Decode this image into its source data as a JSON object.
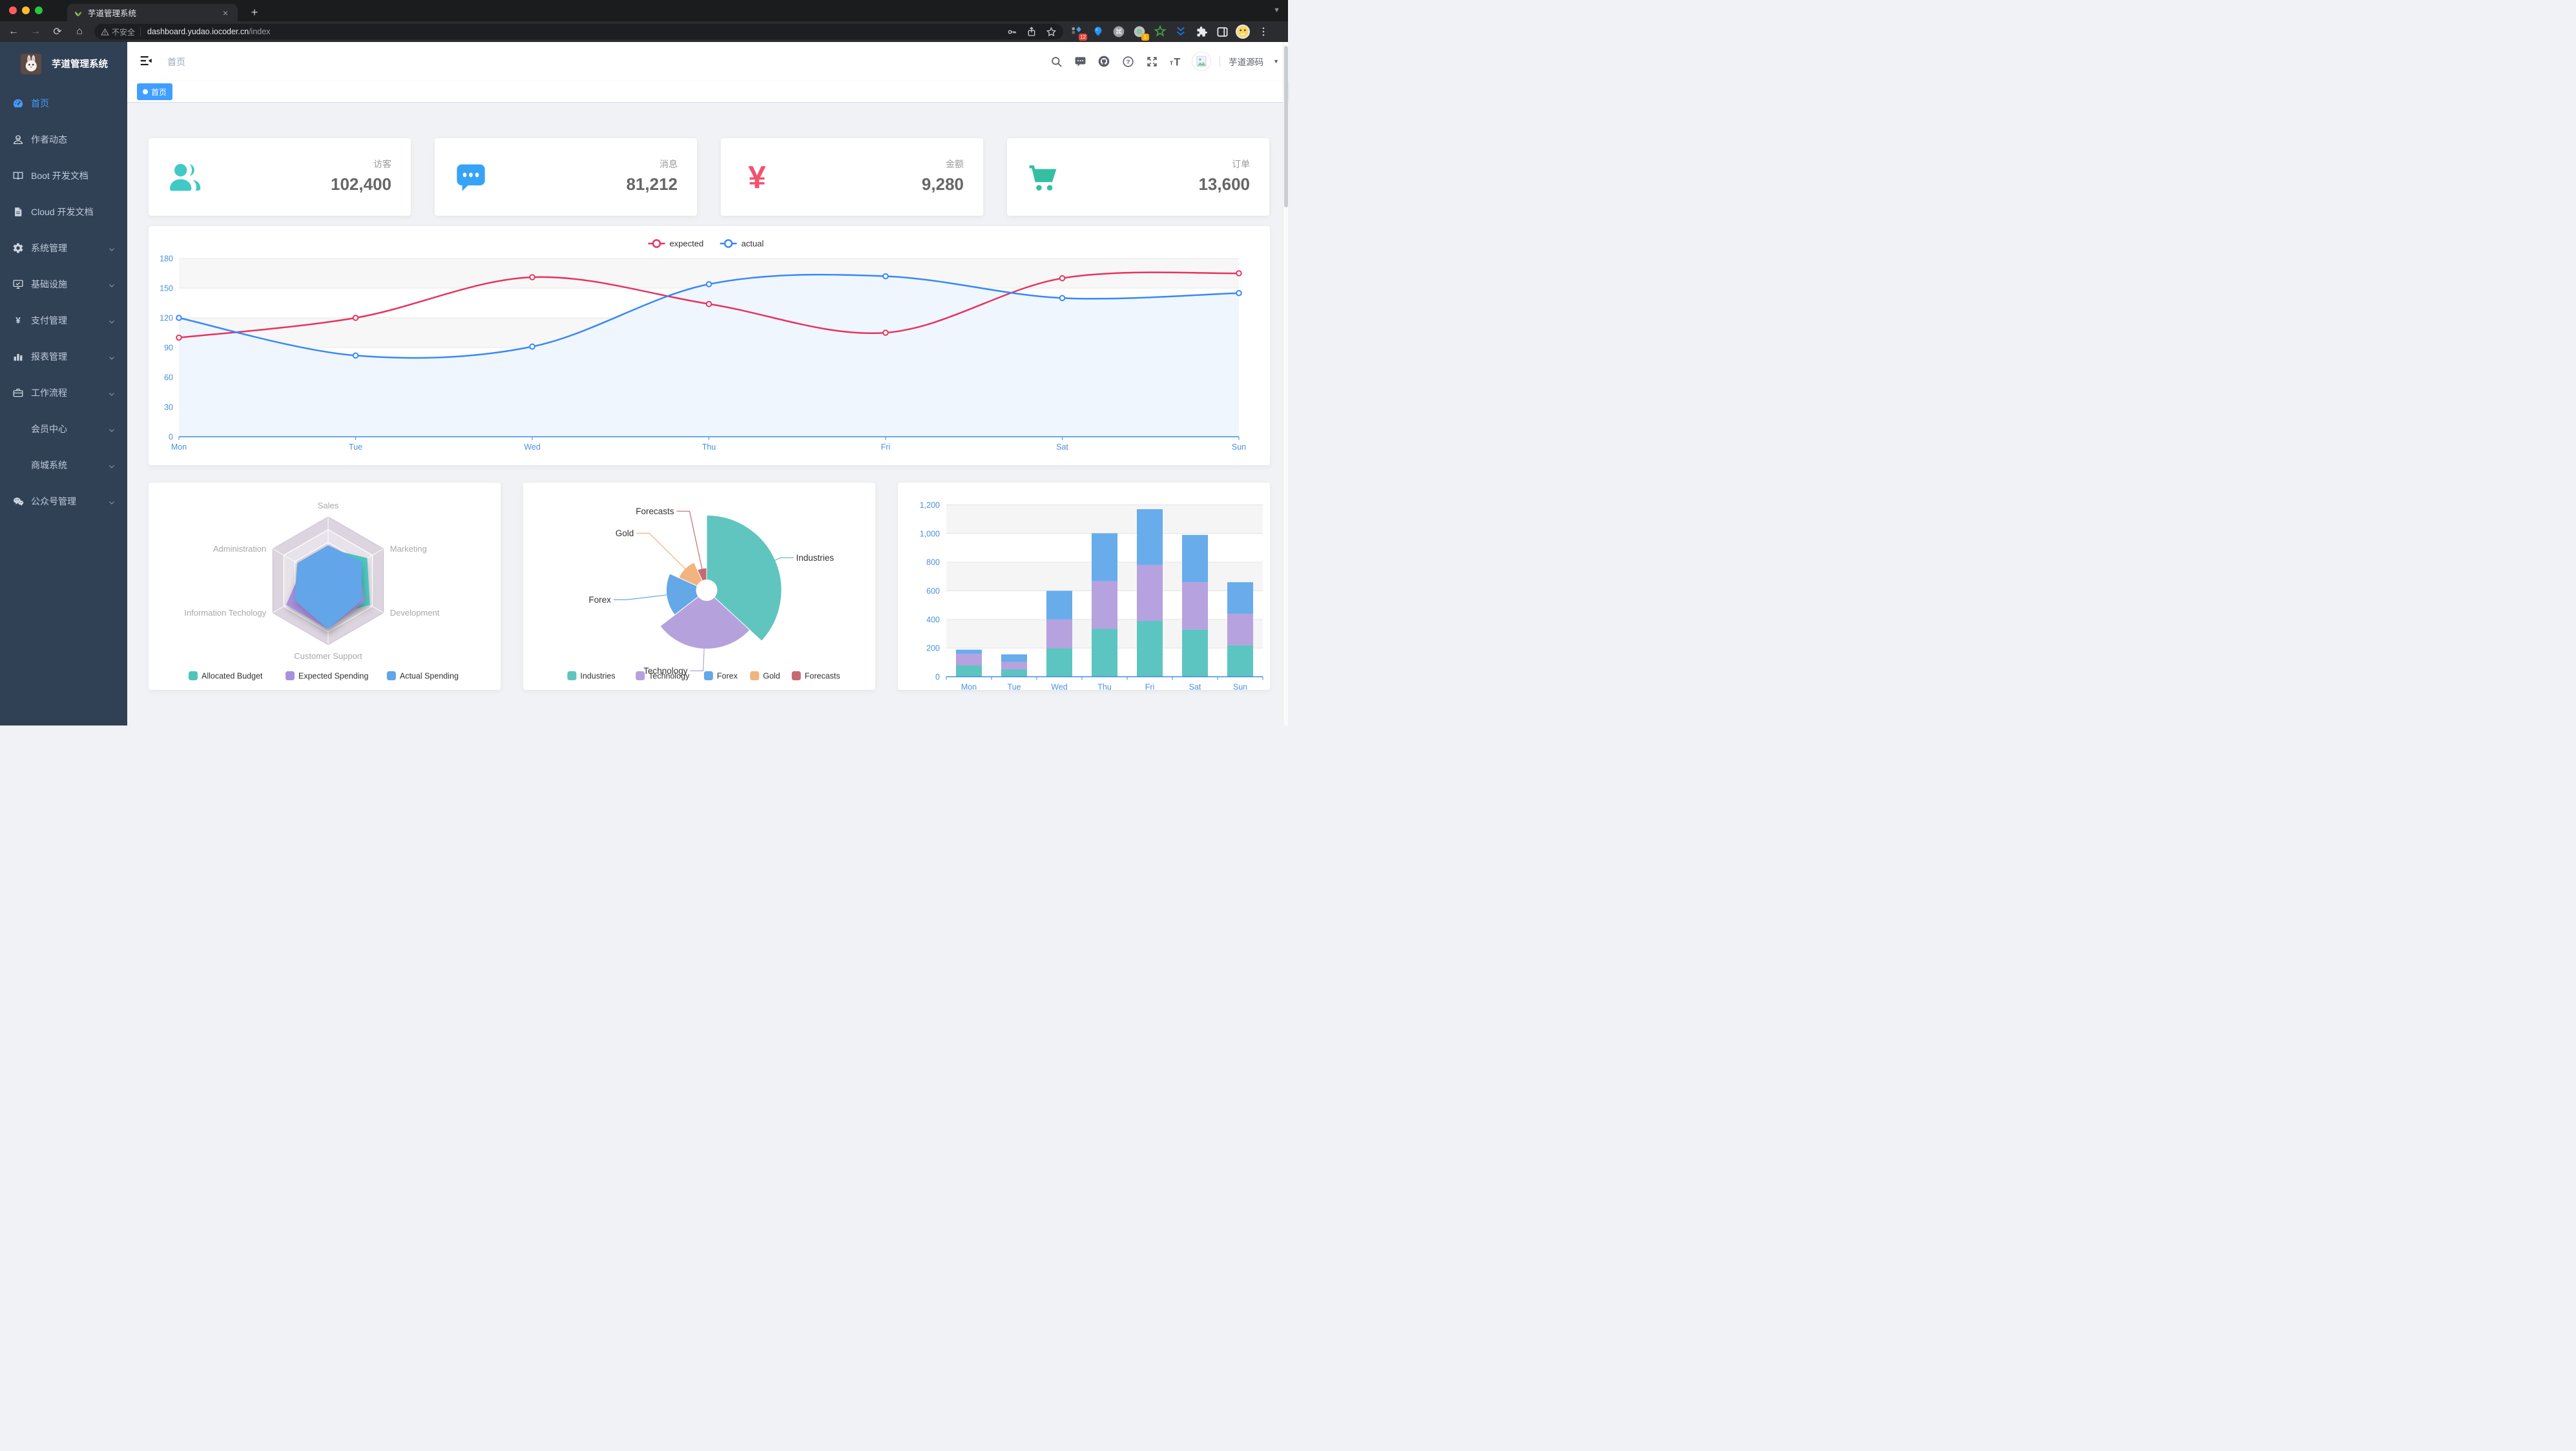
{
  "colors": {
    "accent": "#409EFF",
    "sidebar_bg": "#304156",
    "sidebar_text": "#BFCBD9",
    "axis_blue": "#4A90E2"
  },
  "browser": {
    "traffic_lights": [
      "#FF5F57",
      "#FEBC2E",
      "#28C840"
    ],
    "tab": {
      "title": "芋道管理系统",
      "close_glyph": "×",
      "new_tab_glyph": "+"
    },
    "toolbar": {
      "security_label": "不安全",
      "url_host": "dashboard.yudao.iocoder.cn",
      "url_path": "/index"
    },
    "extensions": [
      {
        "key": "ext-grid-diamond",
        "badge": "12",
        "badge_color": "#E94235"
      },
      {
        "key": "ext-balloon"
      },
      {
        "key": "ext-command"
      },
      {
        "key": "ext-record",
        "badge": "1",
        "badge_color": "#F9AB00"
      },
      {
        "key": "ext-star-green"
      },
      {
        "key": "ext-chevrons"
      },
      {
        "key": "puzzle"
      },
      {
        "key": "ext-panel"
      },
      {
        "key": "profile-avatar"
      },
      {
        "key": "menu-dots"
      }
    ]
  },
  "sidebar": {
    "logo_title": "芋道管理系统",
    "items": [
      {
        "key": "home",
        "icon": "dashboard",
        "label": "首页",
        "active": true,
        "arrow": false
      },
      {
        "key": "author",
        "icon": "people",
        "label": "作者动态",
        "active": false,
        "arrow": false
      },
      {
        "key": "boot-docs",
        "icon": "book",
        "label": "Boot 开发文档",
        "active": false,
        "arrow": false
      },
      {
        "key": "cloud-docs",
        "icon": "document",
        "label": "Cloud 开发文档",
        "active": false,
        "arrow": false
      },
      {
        "key": "system",
        "icon": "gear",
        "label": "系统管理",
        "active": false,
        "arrow": true
      },
      {
        "key": "infra",
        "icon": "monitor",
        "label": "基础设施",
        "active": false,
        "arrow": true
      },
      {
        "key": "payment",
        "icon": "yen",
        "label": "支付管理",
        "active": false,
        "arrow": true
      },
      {
        "key": "report",
        "icon": "chart",
        "label": "报表管理",
        "active": false,
        "arrow": true
      },
      {
        "key": "workflow",
        "icon": "briefcase",
        "label": "工作流程",
        "active": false,
        "arrow": true
      },
      {
        "key": "member",
        "icon": "none",
        "label": "会员中心",
        "active": false,
        "arrow": true
      },
      {
        "key": "mall",
        "icon": "none",
        "label": "商城系统",
        "active": false,
        "arrow": true
      },
      {
        "key": "wechat-mp",
        "icon": "wechat",
        "label": "公众号管理",
        "active": false,
        "arrow": true
      }
    ]
  },
  "header": {
    "breadcrumb": "首页",
    "user_name": "芋道源码"
  },
  "tags": [
    {
      "label": "首页",
      "active": true
    }
  ],
  "cards": [
    {
      "key": "visitors",
      "icon": "peoples",
      "color": "#40C9C6",
      "label": "访客",
      "value": "102,400"
    },
    {
      "key": "messages",
      "icon": "message-solid",
      "color": "#36A3F7",
      "label": "消息",
      "value": "81,212"
    },
    {
      "key": "money",
      "icon": "money-cny",
      "color": "#F4516C",
      "label": "金额",
      "value": "9,280"
    },
    {
      "key": "orders",
      "icon": "shopping-cart",
      "color": "#34BFA3",
      "label": "订单",
      "value": "13,600"
    }
  ],
  "chart_data": [
    {
      "id": "weekly-line",
      "type": "line",
      "x": [
        "Mon",
        "Tue",
        "Wed",
        "Thu",
        "Fri",
        "Sat",
        "Sun"
      ],
      "series": [
        {
          "name": "expected",
          "color": "#E8335E",
          "values": [
            100,
            120,
            161,
            134,
            105,
            160,
            165
          ]
        },
        {
          "name": "actual",
          "color": "#3888FA",
          "area_color": "#F0F6FD",
          "values": [
            120,
            82,
            91,
            154,
            162,
            140,
            145
          ]
        }
      ],
      "ylim": [
        0,
        180
      ],
      "ytick": 30,
      "legend_position": "top",
      "grid": true,
      "axis_color": "#4A90E2",
      "axis_line_color": "#3E8EDE",
      "band_colors": [
        "#F7F7F8",
        "#FFFFFF"
      ]
    },
    {
      "id": "budget-radar",
      "type": "radar",
      "indicators": [
        {
          "name": "Sales",
          "max": 10000
        },
        {
          "name": "Administration",
          "max": 20000
        },
        {
          "name": "Information Techology",
          "max": 20000
        },
        {
          "name": "Customer Support",
          "max": 20000
        },
        {
          "name": "Development",
          "max": 20000
        },
        {
          "name": "Marketing",
          "max": 20000
        }
      ],
      "series": [
        {
          "name": "Allocated Budget",
          "color": "#4EC4BC",
          "values": [
            5000,
            7000,
            12000,
            11000,
            15000,
            14000
          ]
        },
        {
          "name": "Expected Spending",
          "color": "#A892DC",
          "values": [
            4000,
            9000,
            15000,
            15000,
            13000,
            11000
          ]
        },
        {
          "name": "Actual Spending",
          "color": "#62A5E8",
          "values": [
            5500,
            11000,
            12000,
            15000,
            12000,
            12000
          ]
        }
      ],
      "rings": 5,
      "grid_fill": [
        "#DCD4DF",
        "#E8E2EA"
      ],
      "label_color": "#A8A8A8",
      "legend_position": "bottom"
    },
    {
      "id": "sales-pie",
      "type": "pie",
      "rose": true,
      "slices": [
        {
          "name": "Industries",
          "value": 320,
          "color": "#5FC5BE"
        },
        {
          "name": "Technology",
          "value": 240,
          "color": "#B5A2DC"
        },
        {
          "name": "Forex",
          "value": 149,
          "color": "#64A8E8"
        },
        {
          "name": "Gold",
          "value": 100,
          "color": "#F2B37F"
        },
        {
          "name": "Forecasts",
          "value": 59,
          "color": "#C66A71"
        }
      ],
      "inner_radius": 16,
      "outer_radius": 116,
      "start_angle_deg": 0,
      "label_color": "#333333",
      "legend_position": "bottom"
    },
    {
      "id": "weekly-bar",
      "type": "bar",
      "stacked": true,
      "categories": [
        "Mon",
        "Tue",
        "Wed",
        "Thu",
        "Fri",
        "Sat",
        "Sun"
      ],
      "series": [
        {
          "color": "#5CC5C2",
          "values": [
            79,
            52,
            200,
            334,
            390,
            330,
            220
          ]
        },
        {
          "color": "#B6A2DE",
          "values": [
            80,
            52,
            200,
            334,
            390,
            330,
            220
          ]
        },
        {
          "color": "#68ACEC",
          "values": [
            30,
            52,
            200,
            334,
            390,
            330,
            220
          ]
        }
      ],
      "ylim": [
        0,
        1200
      ],
      "ytick": 200,
      "axis_color": "#4A90E2",
      "axis_line_color": "#3E8EDE",
      "band_colors": [
        "#F5F5F5",
        "#FFFFFF"
      ]
    }
  ]
}
